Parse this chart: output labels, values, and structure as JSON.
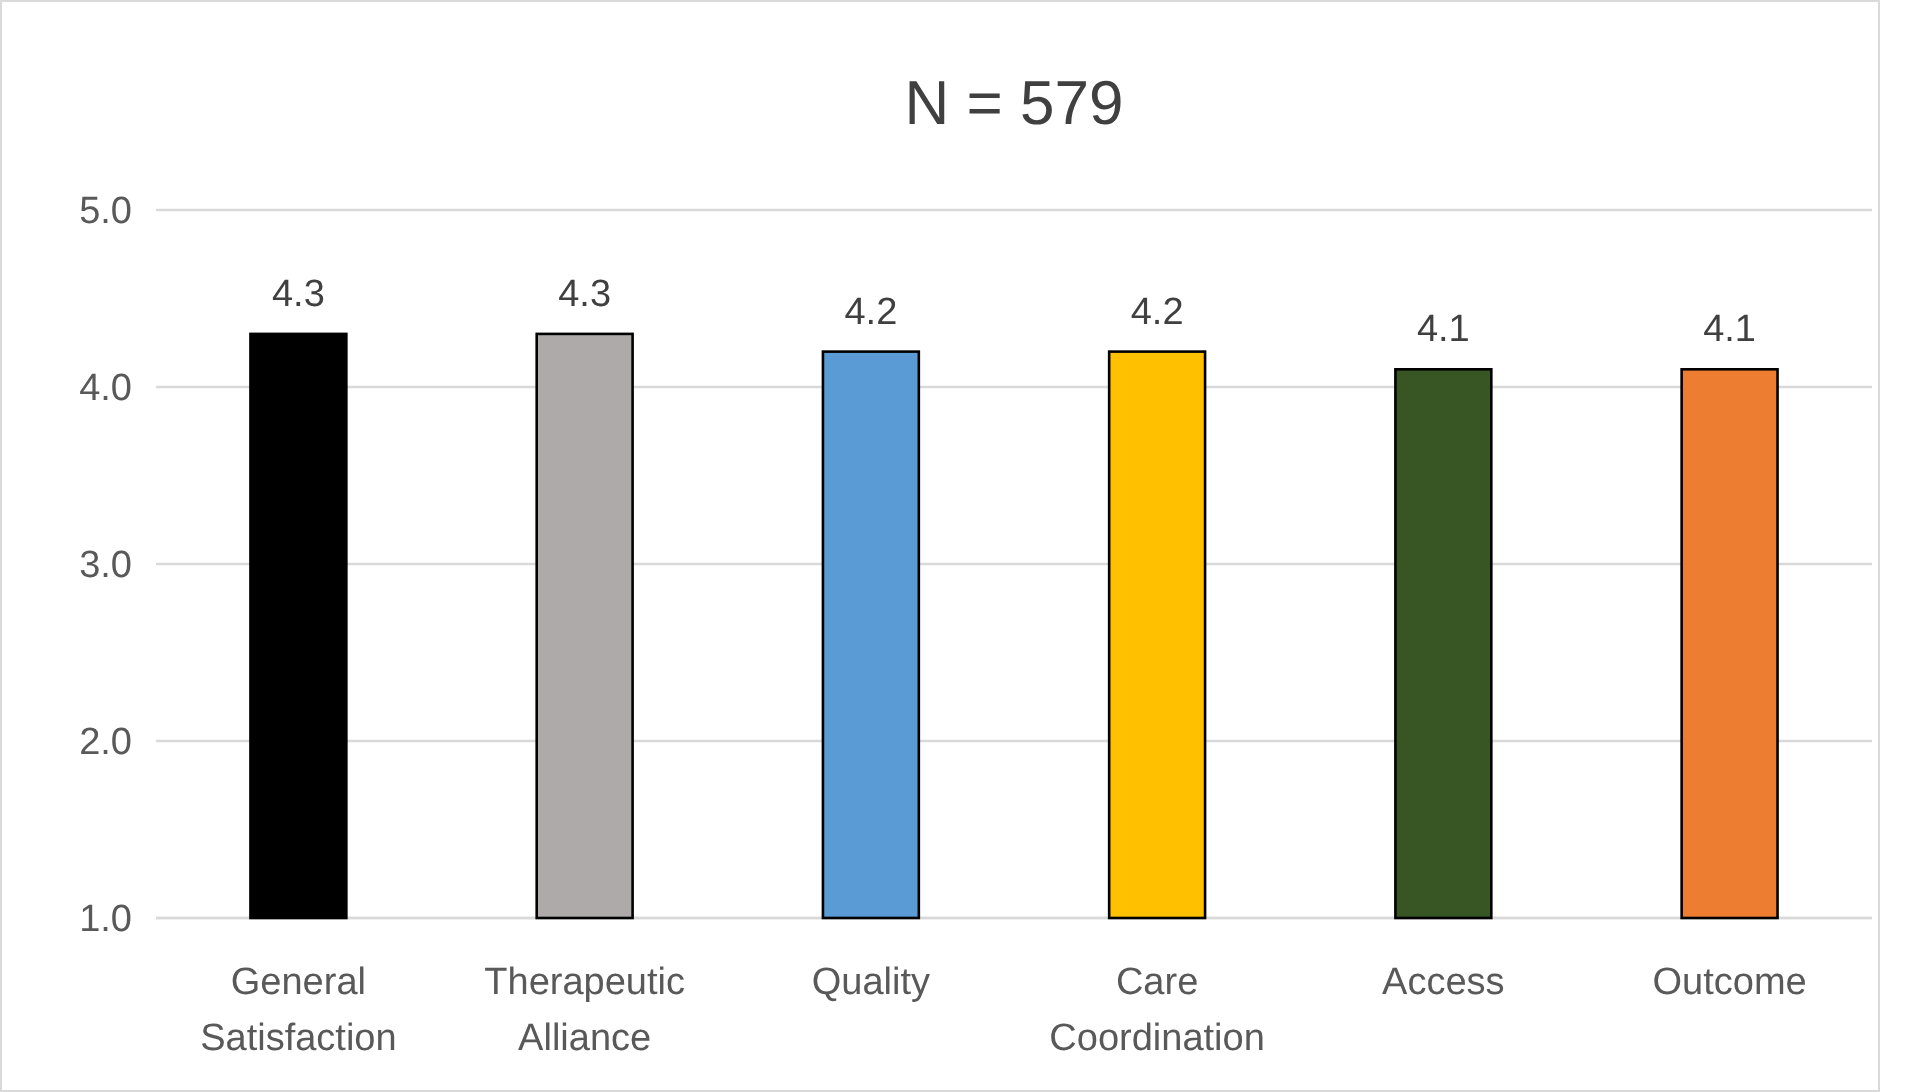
{
  "chart_data": {
    "type": "bar",
    "title": "N = 579",
    "categories": [
      "General Satisfaction",
      "Therapeutic Alliance",
      "Quality",
      "Care Coordination",
      "Access",
      "Outcome"
    ],
    "values": [
      4.3,
      4.3,
      4.2,
      4.2,
      4.1,
      4.1
    ],
    "colors": [
      "#000000",
      "#aeaaaa",
      "#5b9bd5",
      "#ffc000",
      "#375623",
      "#ed7d31"
    ],
    "ylim": [
      1.0,
      5.0
    ],
    "yticks": [
      {
        "value": 1,
        "label": "1.0"
      },
      {
        "value": 2,
        "label": "2.0"
      },
      {
        "value": 3,
        "label": "3.0"
      },
      {
        "value": 4,
        "label": "4.0"
      },
      {
        "value": 5,
        "label": "5.0"
      }
    ],
    "grid": "y",
    "data_labels": true
  }
}
